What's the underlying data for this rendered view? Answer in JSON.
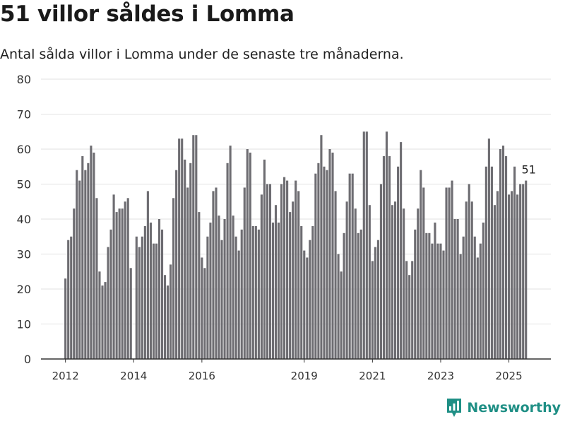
{
  "header": {
    "title": "51 villor såldes i Lomma",
    "subtitle": "Antal sålda villor i Lomma under de senaste tre månaderna."
  },
  "brand": {
    "name": "Newsworthy",
    "icon": "newsworthy-logo-icon"
  },
  "colors": {
    "bar": "#6e6d72",
    "highlight": "#1f9a8f",
    "grid": "#e2e2e2",
    "axis": "#333333"
  },
  "chart_data": {
    "type": "bar",
    "title": "51 villor såldes i Lomma",
    "subtitle": "Antal sålda villor i Lomma under de senaste tre månaderna.",
    "xlabel": "",
    "ylabel": "",
    "ylim": [
      0,
      80
    ],
    "yticks": [
      0,
      10,
      20,
      30,
      40,
      50,
      60,
      70,
      80
    ],
    "xticks": [
      "2012",
      "2014",
      "2016",
      "2019",
      "2021",
      "2023",
      "2025"
    ],
    "grid": true,
    "legend": "none",
    "frequency": "monthly, rolling three-month total",
    "start": "2012-01",
    "values": [
      23,
      34,
      35,
      43,
      54,
      51,
      58,
      54,
      56,
      61,
      59,
      46,
      25,
      21,
      22,
      32,
      37,
      47,
      42,
      43,
      43,
      45,
      46,
      26,
      null,
      35,
      32,
      35,
      38,
      48,
      39,
      33,
      33,
      40,
      37,
      24,
      21,
      27,
      46,
      54,
      63,
      63,
      57,
      49,
      56,
      64,
      64,
      42,
      29,
      26,
      35,
      39,
      48,
      49,
      41,
      34,
      40,
      56,
      61,
      41,
      35,
      31,
      37,
      49,
      60,
      59,
      38,
      38,
      37,
      47,
      57,
      50,
      50,
      39,
      44,
      39,
      50,
      52,
      51,
      42,
      45,
      51,
      48,
      38,
      31,
      29,
      34,
      38,
      53,
      56,
      64,
      55,
      54,
      60,
      59,
      48,
      30,
      25,
      36,
      45,
      53,
      53,
      43,
      36,
      37,
      65,
      65,
      44,
      28,
      32,
      34,
      50,
      58,
      65,
      58,
      44,
      45,
      55,
      62,
      43,
      28,
      24,
      28,
      37,
      43,
      54,
      49,
      36,
      36,
      33,
      39,
      33,
      33,
      31,
      49,
      49,
      51,
      40,
      40,
      30,
      35,
      45,
      50,
      45,
      35,
      29,
      33,
      39,
      55,
      63,
      55,
      44,
      48,
      60,
      61,
      58,
      47,
      48,
      55,
      47,
      50,
      50,
      51
    ],
    "highlight": {
      "index": 163,
      "value": 51,
      "label": "51"
    }
  }
}
